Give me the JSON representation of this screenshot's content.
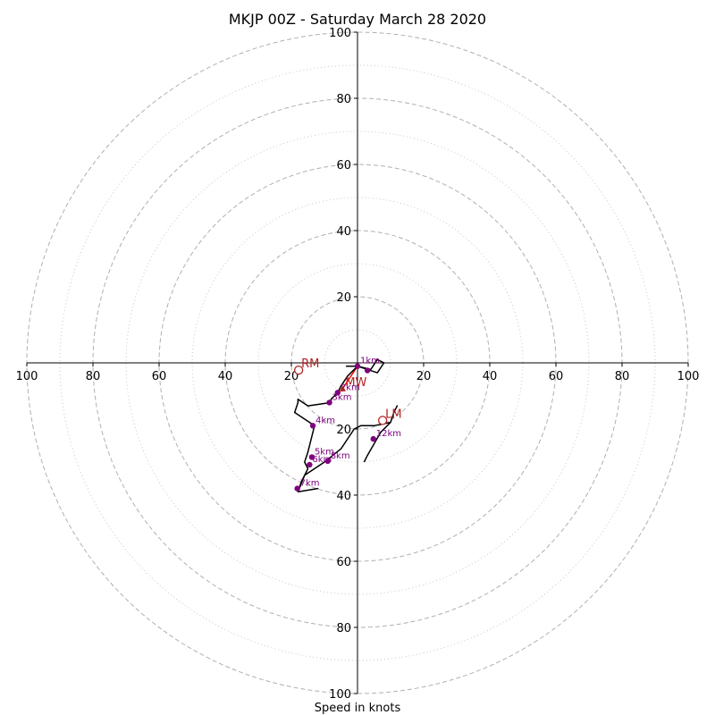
{
  "chart_data": {
    "type": "line",
    "title": "MKJP 00Z - Saturday March 28 2020",
    "xlabel": "Speed in knots",
    "max_speed": 100,
    "ring_major": [
      20,
      40,
      60,
      80,
      100
    ],
    "ring_minor": [
      10,
      30,
      50,
      70,
      90
    ],
    "tick_labels": [
      "20",
      "40",
      "60",
      "80",
      "100"
    ],
    "hodograph": [
      [
        -3.5,
        -1
      ],
      [
        0,
        -1
      ],
      [
        6,
        -3
      ],
      [
        8,
        0
      ],
      [
        6,
        1
      ],
      [
        4,
        -2
      ],
      [
        0,
        -1
      ],
      [
        -3,
        -4
      ],
      [
        -5,
        -7
      ],
      [
        -6,
        -9
      ],
      [
        -8,
        -11
      ],
      [
        -8,
        -12
      ],
      [
        -15,
        -13
      ],
      [
        -18,
        -11
      ],
      [
        -18,
        -12
      ],
      [
        -19,
        -15
      ],
      [
        -13,
        -19
      ],
      [
        -15,
        -27
      ],
      [
        -16,
        -30
      ],
      [
        -15,
        -32
      ],
      [
        -17,
        -36
      ],
      [
        -18,
        -39
      ],
      [
        -12,
        -38
      ],
      [
        -18,
        -39
      ],
      [
        -16,
        -34
      ],
      [
        -10,
        -30
      ],
      [
        -5,
        -26
      ],
      [
        -1,
        -20
      ],
      [
        1,
        -19
      ],
      [
        5,
        -19
      ],
      [
        10,
        -18
      ],
      [
        11,
        -15
      ],
      [
        12,
        -13
      ],
      [
        11,
        -15
      ],
      [
        10,
        -18
      ],
      [
        7,
        -21
      ],
      [
        3,
        -28
      ],
      [
        2,
        -30
      ]
    ],
    "height_markers": [
      {
        "label": "1km",
        "u": 0,
        "v": -1
      },
      {
        "label": "",
        "u": 3,
        "v": -2.3
      },
      {
        "label": "2km",
        "u": -6,
        "v": -9
      },
      {
        "label": "3km",
        "u": -8.5,
        "v": -12
      },
      {
        "label": "4km",
        "u": -13.5,
        "v": -19
      },
      {
        "label": "5km",
        "u": -13.8,
        "v": -28.5
      },
      {
        "label": "6km",
        "u": -14.5,
        "v": -30.8
      },
      {
        "label": "8km",
        "u": -9,
        "v": -29.7
      },
      {
        "label": "7km",
        "u": -18.2,
        "v": -38
      },
      {
        "label": "12km",
        "u": 4.8,
        "v": -23
      }
    ],
    "storm_motion": [
      {
        "label": "RM",
        "u": -17.8,
        "v": -2.2,
        "marker": "open-circle"
      },
      {
        "label": "MW",
        "u": -4.5,
        "v": -7.8,
        "marker": "filled-triangle"
      },
      {
        "label": "LM",
        "u": 7.6,
        "v": -17.4,
        "marker": "open-circle"
      }
    ],
    "shear_vector": {
      "from": [
        0,
        -1
      ],
      "to": [
        -4.5,
        -7.8
      ]
    },
    "colors": {
      "trace": "#000000",
      "height_marker": "#800080",
      "storm_motion": "#b22222",
      "shear_vector": "#ff0000",
      "grid": "#b0b0b0"
    }
  }
}
